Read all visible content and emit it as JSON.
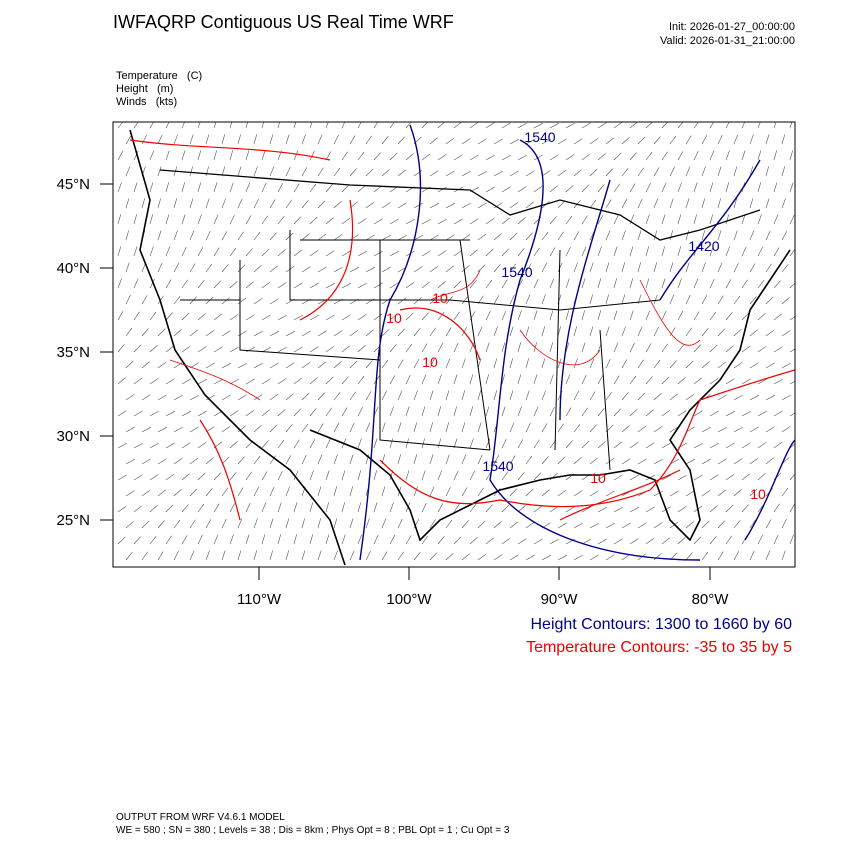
{
  "header": {
    "title": "IWFAQRP Contiguous US Real Time WRF",
    "init": "Init: 2026-01-27_00:00:00",
    "valid": "Valid: 2026-01-31_21:00:00"
  },
  "fields": [
    "Temperature   (C)",
    "Height   (m)",
    "Winds   (kts)"
  ],
  "map": {
    "lat_labels": [
      "45°N",
      "40°N",
      "35°N",
      "30°N",
      "25°N"
    ],
    "lon_labels": [
      "110°W",
      "100°W",
      "90°W",
      "80°W"
    ],
    "height_labels": [
      "1540",
      "1540",
      "1540",
      "1420"
    ],
    "temperature_labels": [
      "10",
      "10",
      "10",
      "10",
      "10"
    ]
  },
  "legend": {
    "height": "Height Contours: 1300 to 1660 by 60",
    "temperature": "Temperature Contours: -35 to 35 by 5"
  },
  "footer": {
    "model": "OUTPUT FROM WRF V4.6.1 MODEL",
    "settings": "WE = 580 ; SN = 380 ; Levels = 38 ; Dis = 8km ; Phys Opt = 8 ; PBL Opt = 1 ; Cu Opt = 3"
  }
}
